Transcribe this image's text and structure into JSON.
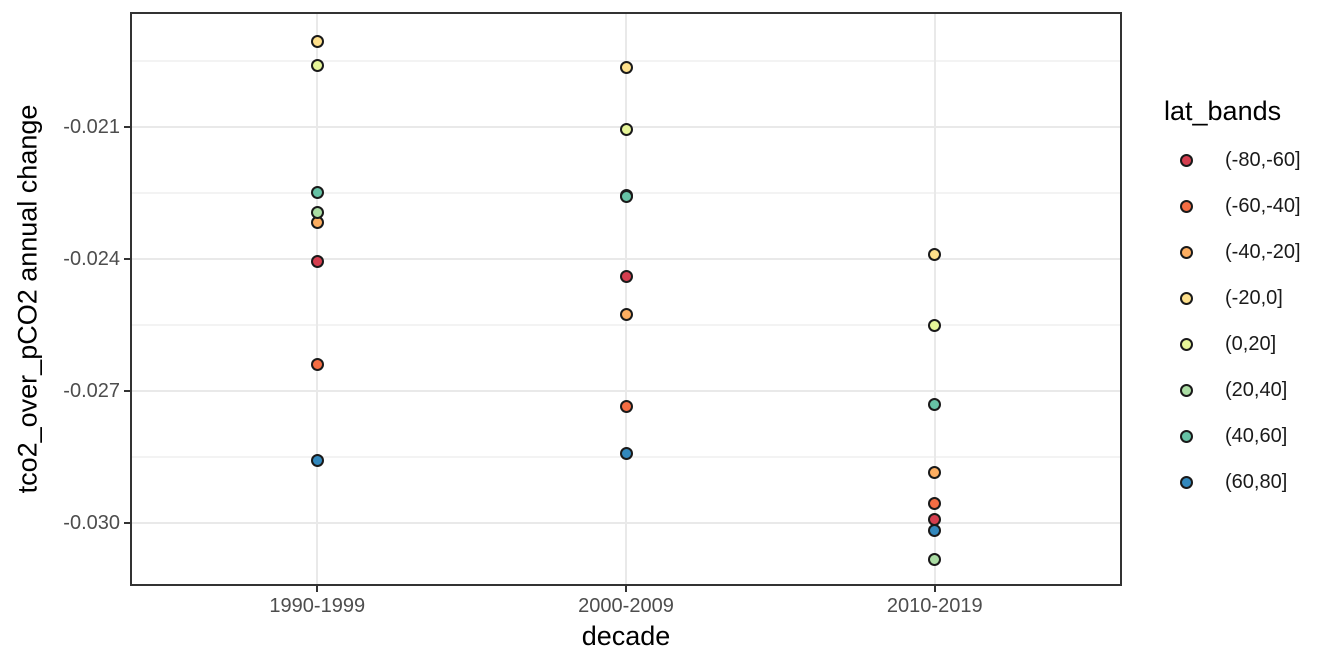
{
  "chart_data": {
    "type": "scatter",
    "title": "",
    "xlabel": "decade",
    "ylabel": "tco2_over_pCO2 annual change",
    "categories": [
      "1990-1999",
      "2000-2009",
      "2010-2019"
    ],
    "y_axis": {
      "tick_values": [
        -0.021,
        -0.024,
        -0.027,
        -0.03
      ],
      "tick_labels": [
        "-0.021",
        "-0.024",
        "-0.027",
        "-0.030"
      ],
      "minor_gridline_values": [
        -0.0195,
        -0.0225,
        -0.0255,
        -0.0285
      ],
      "range_top": -0.018432,
      "range_bottom": -0.031386,
      "grid": true
    },
    "legend": {
      "title": "lat_bands",
      "position": "right"
    },
    "series": [
      {
        "name": "(-80,-60]",
        "color": "#D53E4F",
        "values": [
          -0.02405,
          -0.02439,
          -0.02993
        ]
      },
      {
        "name": "(-60,-40]",
        "color": "#F46D43",
        "values": [
          -0.02639,
          -0.02736,
          -0.02955
        ]
      },
      {
        "name": "(-40,-20]",
        "color": "#FDAE61",
        "values": [
          -0.02318,
          -0.02527,
          -0.02886
        ]
      },
      {
        "name": "(-20,0]",
        "color": "#FEE08B",
        "values": [
          -0.01905,
          -0.01964,
          -0.02389
        ]
      },
      {
        "name": "(0,20]",
        "color": "#E6F598",
        "values": [
          -0.01961,
          -0.02105,
          -0.0255
        ]
      },
      {
        "name": "(20,40]",
        "color": "#ABDDA4",
        "values": [
          -0.02295,
          -0.02255,
          -0.03082
        ]
      },
      {
        "name": "(40,60]",
        "color": "#66C2A5",
        "values": [
          -0.0225,
          -0.02259,
          -0.0273
        ]
      },
      {
        "name": "(60,80]",
        "color": "#3288BD",
        "values": [
          -0.02857,
          -0.02841,
          -0.03016
        ]
      }
    ],
    "style": {
      "point_outline": "#1A1A1A",
      "major_grid_color": "#E9E9E9",
      "minor_grid_color": "#F3F3F3",
      "panel_border_color": "#333333",
      "tick_color": "#333333",
      "tick_label_color": "#4D4D4D",
      "title_color": "#000000",
      "background": "#FFFFFF"
    }
  }
}
